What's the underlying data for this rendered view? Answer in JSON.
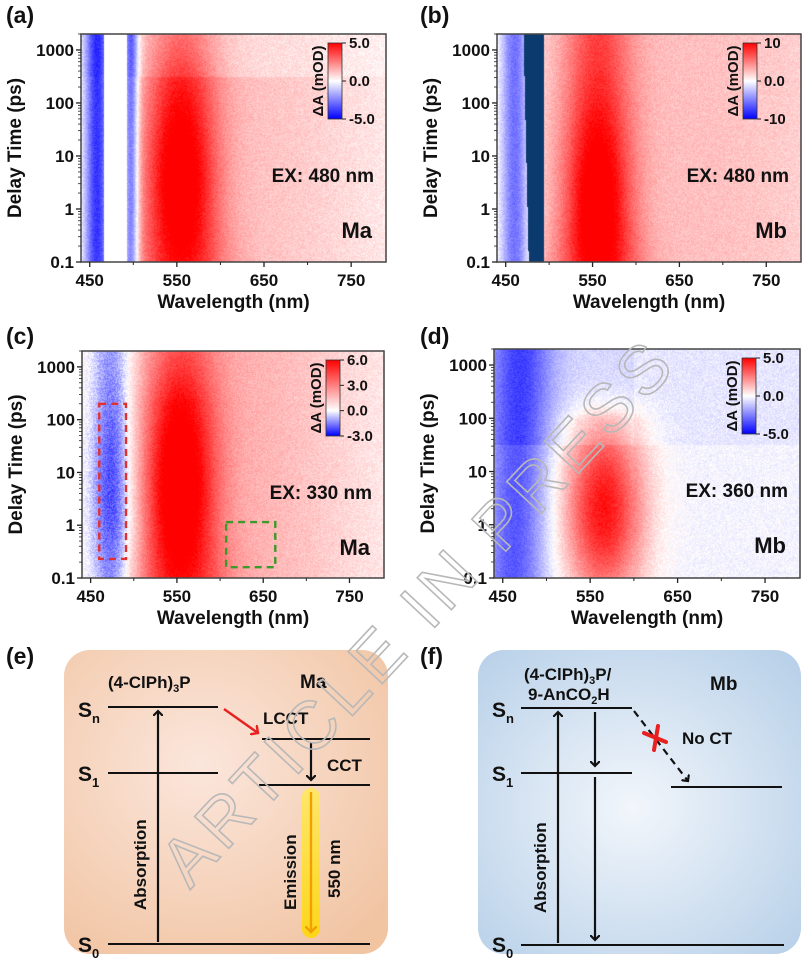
{
  "panel_labels": [
    "(a)",
    "(b)",
    "(c)",
    "(d)",
    "(e)",
    "(f)"
  ],
  "chart_data": [
    {
      "id": "a",
      "type": "heatmap",
      "title": "",
      "xlabel": "Wavelength (nm)",
      "ylabel": "Delay Time (ps)",
      "xlim": [
        440,
        790
      ],
      "ylim": [
        0.1,
        2000
      ],
      "yscale": "log",
      "xticks": [
        450,
        550,
        650,
        750
      ],
      "xticks_minor": [
        500,
        600,
        700
      ],
      "yticks": [
        0.1,
        1,
        10,
        100,
        1000
      ],
      "ytick_labels": [
        "0.1",
        "1",
        "10",
        "100",
        "1000"
      ],
      "colorbar": {
        "title": "ΔA (mOD)",
        "min": -5.0,
        "max": 5.0,
        "ticks": [
          5.0,
          0.0,
          -5.0
        ],
        "tick_labels": [
          "5.0",
          "0.0",
          "-5.0"
        ],
        "colors": [
          "#0000ff",
          "#ffffff",
          "#ff0000"
        ],
        "position": "top-right"
      },
      "annotation": "EX: 480 nm",
      "sample": "Ma",
      "features": [
        {
          "kind": "bleach",
          "center_nm": 458,
          "width_nm": 10,
          "amplitude": -4.5,
          "t_range": [
            0.1,
            2000
          ]
        },
        {
          "kind": "scatter_gap",
          "range_nm": [
            466,
            492
          ]
        },
        {
          "kind": "bleach",
          "center_nm": 497,
          "width_nm": 6,
          "amplitude": -4.0,
          "t_range": [
            0.1,
            2000
          ]
        },
        {
          "kind": "esa",
          "center_nm": 553,
          "width_nm": 30,
          "amplitude": 5.0,
          "t_peak": 3,
          "t_range": [
            0.1,
            2000
          ]
        },
        {
          "kind": "esa_broad",
          "center_nm": 620,
          "width_nm": 120,
          "amplitude": 1.2
        }
      ]
    },
    {
      "id": "b",
      "type": "heatmap",
      "title": "",
      "xlabel": "Wavelength (nm)",
      "ylabel": "Delay Time (ps)",
      "xlim": [
        440,
        790
      ],
      "ylim": [
        0.1,
        2000
      ],
      "yscale": "log",
      "xticks": [
        450,
        550,
        650,
        750
      ],
      "xticks_minor": [
        500,
        600,
        700
      ],
      "yticks": [
        0.1,
        1,
        10,
        100,
        1000
      ],
      "ytick_labels": [
        "0.1",
        "1",
        "10",
        "100",
        "1000"
      ],
      "colorbar": {
        "title": "ΔA (mOD)",
        "min": -10,
        "max": 10,
        "ticks": [
          10,
          0.0,
          -10
        ],
        "tick_labels": [
          "10",
          "0.0",
          "-10"
        ],
        "colors": [
          "#0000ff",
          "#ffffff",
          "#ff0000"
        ],
        "position": "top-right"
      },
      "annotation": "EX: 480 nm",
      "sample": "Mb",
      "features": [
        {
          "kind": "bleach",
          "center_nm": 460,
          "width_nm": 12,
          "amplitude": -7,
          "t_range": [
            0.1,
            2000
          ]
        },
        {
          "kind": "saturated_band",
          "range_nm": [
            470,
            493
          ],
          "color": "#0b3a6e"
        },
        {
          "kind": "esa",
          "center_nm": 555,
          "width_nm": 28,
          "amplitude": 10,
          "t_peak": 1,
          "t_range": [
            0.1,
            2000
          ]
        },
        {
          "kind": "esa_broad",
          "center_nm": 650,
          "width_nm": 180,
          "amplitude": 2.5
        }
      ]
    },
    {
      "id": "c",
      "type": "heatmap",
      "title": "",
      "xlabel": "Wavelength (nm)",
      "ylabel": "Delay Time (ps)",
      "xlim": [
        440,
        790
      ],
      "ylim": [
        0.1,
        2000
      ],
      "yscale": "log",
      "xticks": [
        450,
        550,
        650,
        750
      ],
      "xticks_minor": [
        500,
        600,
        700
      ],
      "yticks": [
        0.1,
        1,
        10,
        100,
        1000
      ],
      "ytick_labels": [
        "0.1",
        "1",
        "10",
        "100",
        "1000"
      ],
      "colorbar": {
        "title": "ΔA (mOD)",
        "min": -3.0,
        "max": 6.0,
        "ticks": [
          6.0,
          3.0,
          0.0,
          -3.0
        ],
        "tick_labels": [
          "6.0",
          "3.0",
          "0.0",
          "-3.0"
        ],
        "colors": [
          "#0000ff",
          "#ffffff",
          "#ff0000"
        ],
        "position": "top-right"
      },
      "annotation": "EX: 330 nm",
      "sample": "Ma",
      "features": [
        {
          "kind": "bleach",
          "center_nm": 475,
          "width_nm": 18,
          "amplitude": -3.0,
          "t_peak": 5,
          "t_range": [
            0.1,
            2000
          ]
        },
        {
          "kind": "esa",
          "center_nm": 552,
          "width_nm": 30,
          "amplitude": 6.0,
          "t_peak": 5,
          "t_range": [
            0.1,
            2000
          ]
        },
        {
          "kind": "esa_broad",
          "center_nm": 620,
          "width_nm": 110,
          "amplitude": 1.8
        }
      ],
      "highlight_boxes": [
        {
          "color": "#e03030",
          "style": "dashed",
          "x_range_nm": [
            460,
            491
          ],
          "t_range_ps": [
            0.23,
            200
          ]
        },
        {
          "color": "#3a9a2a",
          "style": "dashed",
          "x_range_nm": [
            607,
            664
          ],
          "t_range_ps": [
            0.16,
            1.15
          ]
        }
      ]
    },
    {
      "id": "d",
      "type": "heatmap",
      "title": "",
      "xlabel": "Wavelength (nm)",
      "ylabel": "Delay Time (ps)",
      "xlim": [
        440,
        790
      ],
      "ylim": [
        0.1,
        2000
      ],
      "yscale": "log",
      "xticks": [
        450,
        550,
        650,
        750
      ],
      "xticks_minor": [
        500,
        600,
        700
      ],
      "yticks": [
        0.1,
        1,
        10,
        100,
        1000
      ],
      "ytick_labels": [
        "0.1",
        "1",
        "10",
        "100",
        "1000"
      ],
      "colorbar": {
        "title": "ΔA (mOD)",
        "min": -5.0,
        "max": 5.0,
        "ticks": [
          5.0,
          0.0,
          -5.0
        ],
        "tick_labels": [
          "5.0",
          "0.0",
          "-5.0"
        ],
        "colors": [
          "#0000ff",
          "#ffffff",
          "#ff0000"
        ],
        "position": "top-right"
      },
      "annotation": "EX: 360 nm",
      "sample": "Mb",
      "features": [
        {
          "kind": "bleach",
          "center_nm": 462,
          "width_nm": 25,
          "amplitude": -3.0,
          "t_range": [
            0.1,
            2000
          ]
        },
        {
          "kind": "esa",
          "center_nm": 565,
          "width_nm": 32,
          "amplitude": 5.0,
          "t_peak": 1,
          "t_range": [
            0.1,
            300
          ]
        },
        {
          "kind": "background",
          "amplitude": -0.8
        }
      ]
    }
  ],
  "diagrams": {
    "e": {
      "background": "#f2c9a8",
      "molecule_label": "(4-ClPh)",
      "molecule_sub": "3",
      "molecule_tail": "P",
      "sample": "Ma",
      "levels": {
        "sn": "S",
        "sn_sub": "n",
        "s1": "S",
        "s1_sub": "1",
        "s0": "S",
        "s0_sub": "0"
      },
      "labels": {
        "lcct": "LCCT",
        "cct": "CCT",
        "absorption": "Absorption",
        "emission": "Emission",
        "emission_wavelength": "550 nm"
      },
      "colors": {
        "lcct_arrow": "#e82020",
        "emission_glow": "#ffe000",
        "emission_core": "#f0a000"
      }
    },
    "f": {
      "background": "#b8d2ea",
      "molecule_line1_a": "(4-ClPh)",
      "molecule_line1_sub": "3",
      "molecule_line1_b": "P/",
      "molecule_line2_a": "9-AnCO",
      "molecule_line2_sub": "2",
      "molecule_line2_b": "H",
      "sample": "Mb",
      "levels": {
        "sn": "S",
        "sn_sub": "n",
        "s1": "S",
        "s1_sub": "1",
        "s0": "S",
        "s0_sub": "0"
      },
      "labels": {
        "no_ct": "No CT",
        "absorption": "Absorption"
      },
      "colors": {
        "cross": "#e82020"
      }
    }
  },
  "watermark": "ARTICLE IN PRESS"
}
